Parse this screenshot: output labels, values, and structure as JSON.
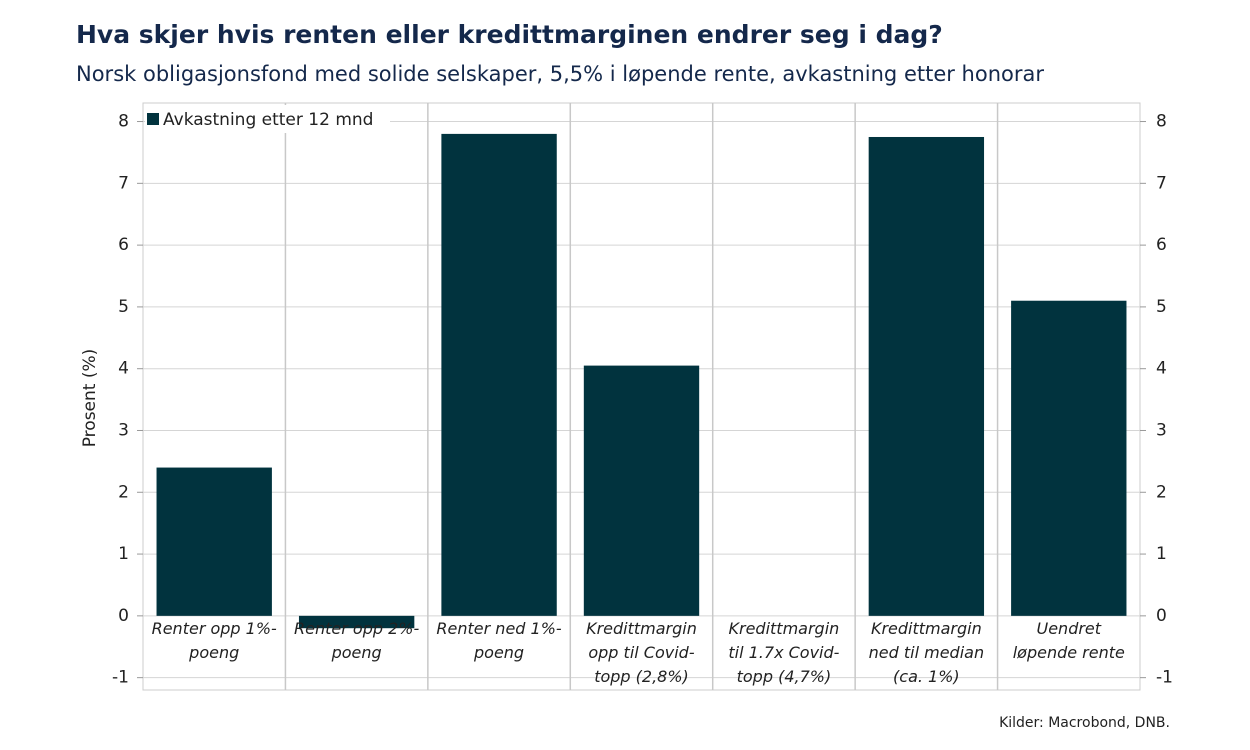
{
  "chart_data": {
    "type": "bar",
    "title": "Hva skjer hvis renten eller kredittmarginen endrer seg i dag?",
    "subtitle": "Norsk obligasjonsfond med solide selskaper, 5,5% i løpende rente, avkastning etter honorar",
    "y_label": "Prosent (%)",
    "source": "Kilder: Macrobond, DNB.",
    "categories": [
      "Renter opp 1%-poeng",
      "Renter opp 2%-poeng",
      "Renter ned 1%-poeng",
      "Kredittmargin opp til Covid-topp (2,8%)",
      "Kredittmargin til 1.7x Covid-topp (4,7%)",
      "Kredittmargin ned til median (ca. 1%)",
      "Uendret løpende rente"
    ],
    "series": [
      {
        "name": "Avkastning etter 12 mnd",
        "color": "#01333e",
        "values": [
          2.4,
          -0.2,
          7.8,
          4.05,
          0,
          7.75,
          5.1
        ]
      }
    ],
    "ylim": [
      -1.2,
      8.3
    ],
    "yticks": [
      -1,
      0,
      1,
      2,
      3,
      4,
      5,
      6,
      7,
      8
    ],
    "y2lim": [
      -1.2,
      8.3
    ],
    "y2ticks": [
      -1,
      0,
      1,
      2,
      3,
      4,
      5,
      6,
      7,
      8
    ],
    "grid": true,
    "legend": "top-left"
  }
}
